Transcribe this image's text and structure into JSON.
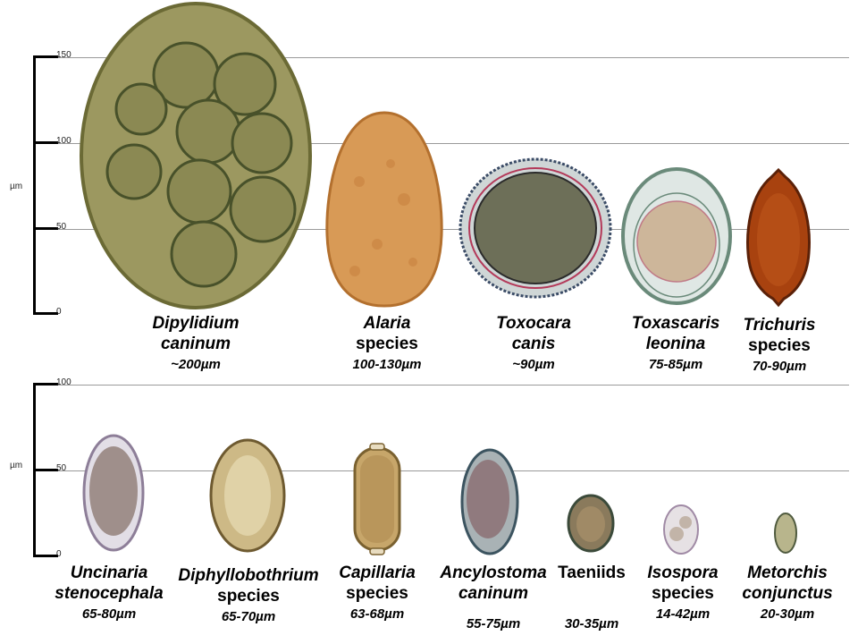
{
  "panels": [
    {
      "unit": "µm",
      "ticks": [
        "150",
        "100",
        "50",
        "0"
      ],
      "eggs": [
        {
          "name_lines": [
            "Dipylidium",
            "caninum"
          ],
          "size": "~200µm",
          "italic": true,
          "colors": {
            "shell": "#6b6a35",
            "fill": "#9c9860",
            "inner": "#7d7a48"
          }
        },
        {
          "name_lines": [
            "Alaria",
            "species"
          ],
          "size": "100-130µm",
          "italic": true,
          "colors": {
            "shell": "#b3702e",
            "fill": "#d89a56",
            "inner": "#c9823f"
          }
        },
        {
          "name_lines": [
            "Toxocara",
            "canis"
          ],
          "size": "~90µm",
          "italic": true,
          "colors": {
            "shell": "#3a4b66",
            "fill": "#cfd6d6",
            "inner": "#6d6f58"
          }
        },
        {
          "name_lines": [
            "Toxascaris",
            "leonina"
          ],
          "size": "75-85µm",
          "italic": true,
          "colors": {
            "shell": "#6a8a7a",
            "fill": "#dfe7e4",
            "inner": "#cdb69a"
          }
        },
        {
          "name_lines": [
            "Trichuris",
            "species"
          ],
          "size": "70-90µm",
          "italic": true,
          "colors": {
            "shell": "#5b2108",
            "fill": "#a8420f",
            "inner": "#c25a1e"
          }
        }
      ]
    },
    {
      "unit": "µm",
      "ticks": [
        "100",
        "50",
        "0"
      ],
      "eggs": [
        {
          "name_lines": [
            "Uncinaria",
            "stenocephala"
          ],
          "size": "65-80µm",
          "italic": true,
          "colors": {
            "shell": "#8d7e98",
            "fill": "#e2dee6",
            "inner": "#8e7b74"
          }
        },
        {
          "name_lines": [
            "Diphyllobothrium",
            "species"
          ],
          "size": "65-70µm",
          "italic": true,
          "colors": {
            "shell": "#6e5a30",
            "fill": "#cdb986",
            "inner": "#e3d6ad"
          }
        },
        {
          "name_lines": [
            "Capillaria",
            "species"
          ],
          "size": "63-68µm",
          "italic": true,
          "colors": {
            "shell": "#7a6130",
            "fill": "#c7a66a",
            "inner": "#b59257"
          }
        },
        {
          "name_lines": [
            "Ancylostoma",
            "caninum"
          ],
          "size": "55-75µm",
          "italic": true,
          "colors": {
            "shell": "#3c5460",
            "fill": "#a9b2b5",
            "inner": "#8a6c70"
          }
        },
        {
          "name_lines": [
            "Taeniids"
          ],
          "size": "30-35µm",
          "italic": false,
          "colors": {
            "shell": "#3b4a3a",
            "fill": "#8a7a5c",
            "inner": "#a08a66"
          }
        },
        {
          "name_lines": [
            "Isospora",
            "species"
          ],
          "size": "14-42µm",
          "italic": true,
          "colors": {
            "shell": "#a08aa5",
            "fill": "#e6e1e4",
            "inner": "#b9a999"
          }
        },
        {
          "name_lines": [
            "Metorchis",
            "conjunctus"
          ],
          "size": "20-30µm",
          "italic": true,
          "colors": {
            "shell": "#4f5a3e",
            "fill": "#b8b58c",
            "inner": "#9d9a70"
          }
        }
      ]
    }
  ]
}
